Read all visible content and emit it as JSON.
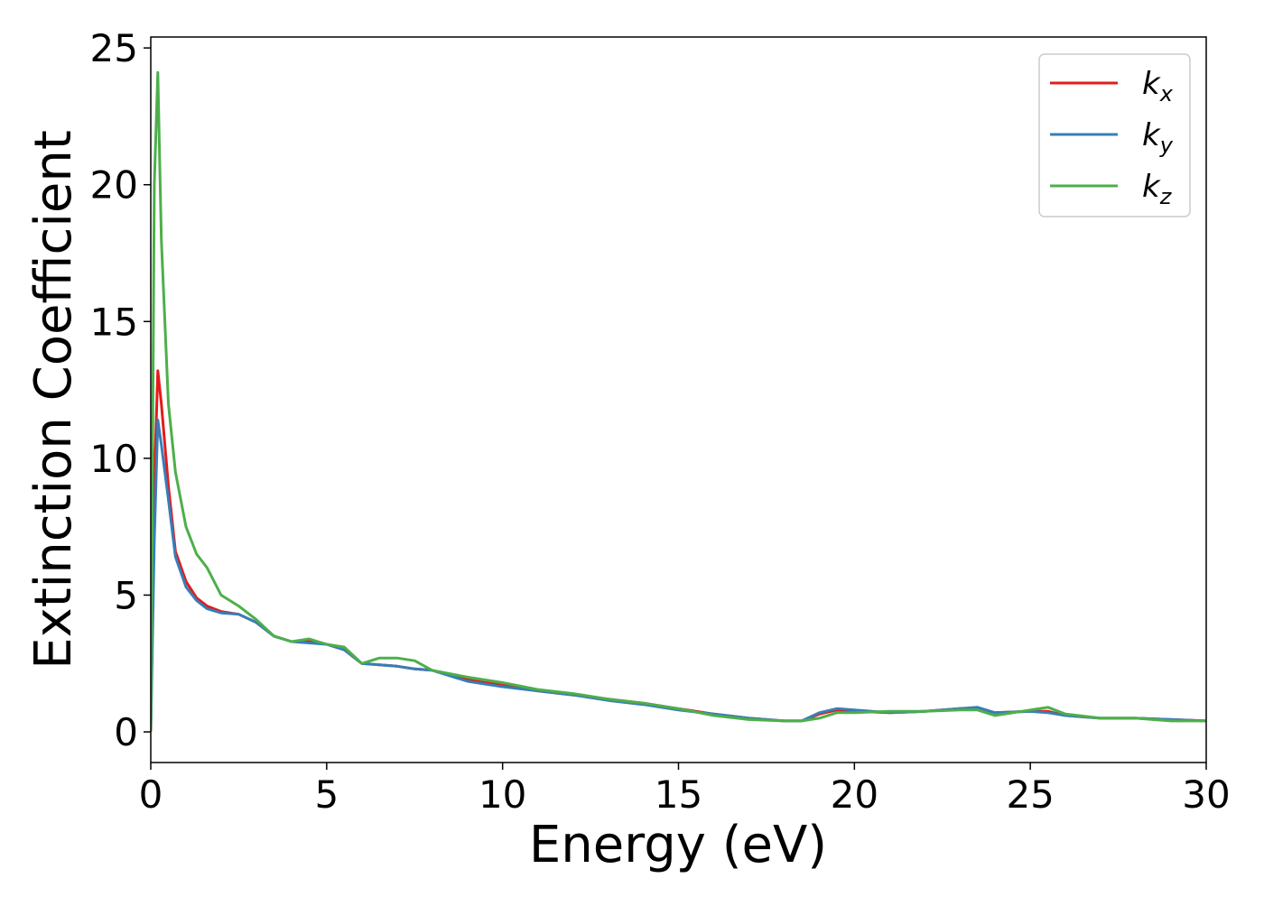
{
  "chart_data": {
    "type": "line",
    "xlabel": "Energy (eV)",
    "ylabel": "Extinction Coefficient",
    "x": [
      0,
      0.1,
      0.2,
      0.3,
      0.5,
      0.7,
      1.0,
      1.3,
      1.6,
      2.0,
      2.5,
      3,
      3.5,
      4,
      4.5,
      5,
      5.5,
      6,
      6.5,
      7,
      7.5,
      8,
      9,
      10,
      11,
      12,
      13,
      14,
      15,
      16,
      17,
      18,
      18.5,
      19,
      19.5,
      20,
      21,
      22,
      23,
      23.5,
      24,
      25,
      25.5,
      26,
      27,
      28,
      29,
      30
    ],
    "series": [
      {
        "name": "k_x",
        "color": "#e41a1c",
        "values": [
          0,
          9,
          13.2,
          12,
          9,
          6.6,
          5.5,
          4.9,
          4.6,
          4.4,
          4.3,
          4.0,
          3.5,
          3.3,
          3.3,
          3.2,
          3.0,
          2.5,
          2.45,
          2.4,
          2.3,
          2.25,
          1.9,
          1.7,
          1.5,
          1.35,
          1.2,
          1.05,
          0.85,
          0.65,
          0.5,
          0.4,
          0.4,
          0.65,
          0.8,
          0.75,
          0.7,
          0.75,
          0.85,
          0.85,
          0.7,
          0.75,
          0.75,
          0.6,
          0.5,
          0.5,
          0.45,
          0.4
        ]
      },
      {
        "name": "k_y",
        "color": "#377eb8",
        "values": [
          0,
          7,
          11.4,
          10.5,
          8.5,
          6.4,
          5.3,
          4.8,
          4.5,
          4.35,
          4.3,
          4.0,
          3.5,
          3.3,
          3.25,
          3.2,
          3.0,
          2.5,
          2.45,
          2.4,
          2.3,
          2.25,
          1.85,
          1.65,
          1.5,
          1.35,
          1.15,
          1.0,
          0.8,
          0.65,
          0.5,
          0.4,
          0.4,
          0.7,
          0.85,
          0.8,
          0.7,
          0.75,
          0.85,
          0.9,
          0.7,
          0.75,
          0.7,
          0.6,
          0.5,
          0.5,
          0.45,
          0.4
        ]
      },
      {
        "name": "k_z",
        "color": "#4daf4a",
        "values": [
          0,
          20,
          24.1,
          18,
          12,
          9.5,
          7.5,
          6.5,
          6.0,
          5.0,
          4.6,
          4.1,
          3.5,
          3.3,
          3.4,
          3.2,
          3.1,
          2.5,
          2.7,
          2.7,
          2.6,
          2.25,
          2.0,
          1.8,
          1.55,
          1.4,
          1.2,
          1.05,
          0.85,
          0.6,
          0.45,
          0.4,
          0.4,
          0.5,
          0.7,
          0.7,
          0.75,
          0.75,
          0.8,
          0.8,
          0.6,
          0.8,
          0.9,
          0.65,
          0.5,
          0.5,
          0.4,
          0.4
        ]
      }
    ],
    "xlim": [
      0,
      30
    ],
    "xticks": [
      0,
      5,
      10,
      15,
      20,
      25,
      30
    ],
    "ylim": [
      -1.12,
      25.4
    ],
    "yticks": [
      0,
      5,
      10,
      15,
      20,
      25
    ],
    "legend": "upper right"
  }
}
